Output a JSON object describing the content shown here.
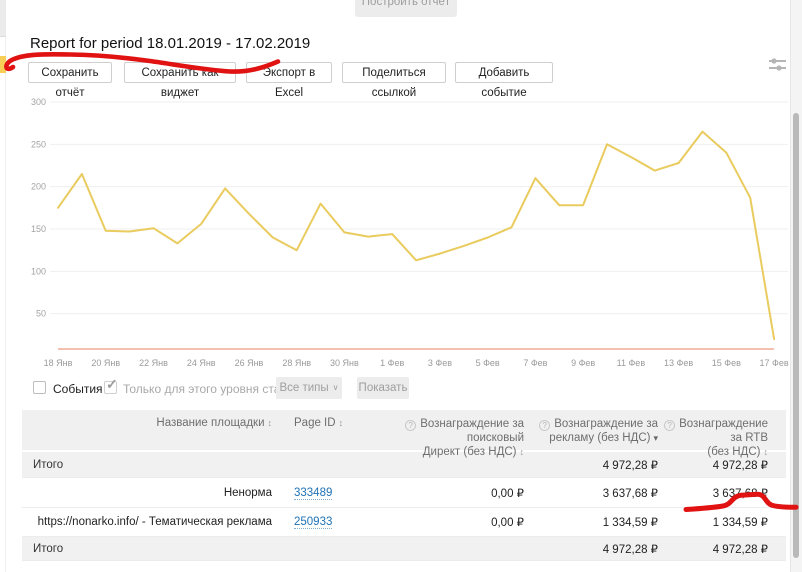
{
  "page": {
    "top_button": "Построить отчёт",
    "title": "Report for period 18.01.2019 - 17.02.2019"
  },
  "toolbar": {
    "buttons": [
      "Сохранить отчёт",
      "Сохранить как виджет",
      "Экспорт в Excel",
      "Поделиться ссылкой",
      "Добавить событие"
    ]
  },
  "chart_data": {
    "type": "line",
    "title": "",
    "x_labels": [
      "18 Янв",
      "20 Янв",
      "22 Янв",
      "24 Янв",
      "26 Янв",
      "28 Янв",
      "30 Янв",
      "1 Фев",
      "3 Фев",
      "5 Фев",
      "7 Фев",
      "9 Фев",
      "11 Фев",
      "13 Фев",
      "15 Фев",
      "17 Фев"
    ],
    "y_ticks": [
      50,
      100,
      150,
      200,
      250,
      300
    ],
    "ylim": [
      0,
      300
    ],
    "grid": true,
    "series": [
      {
        "name": "main",
        "color": "#e9cb5e",
        "values": [
          175,
          215,
          148,
          147,
          151,
          133,
          156,
          198,
          168,
          140,
          125,
          180,
          146,
          141,
          144,
          113,
          121,
          130,
          140,
          152,
          210,
          178,
          178,
          250,
          235,
          219,
          228,
          265,
          240,
          187,
          20
        ]
      },
      {
        "name": "secondary-flat",
        "color": "#f0ac95",
        "value": 0
      }
    ]
  },
  "filters": {
    "events_label": "События",
    "level_label": "Только для этого уровня статистики",
    "type_select": "Все типы",
    "show_button": "Показать"
  },
  "table": {
    "headers": {
      "platform": "Название площадки",
      "page_id": "Page ID",
      "direct_l1": "Вознаграждение за поисковый",
      "direct_l2": "Директ (без НДС)",
      "ads_l1": "Вознаграждение за",
      "ads_l2": "рекламу (без НДС)",
      "rtb_l1": "Вознаграждение за RTB",
      "rtb_l2": "(без НДС)"
    },
    "rows": [
      {
        "name": "Итого",
        "page_id": "",
        "direct": "",
        "ads": "4 972,28 ₽",
        "rtb": "4 972,28 ₽"
      },
      {
        "name": "Ненорма",
        "page_id": "333489",
        "direct": "0,00 ₽",
        "ads": "3 637,68 ₽",
        "rtb": "3 637,68 ₽"
      },
      {
        "name": "https://nonarko.info/ - Тематическая реклама",
        "page_id": "250933",
        "direct": "0,00 ₽",
        "ads": "1 334,59 ₽",
        "rtb": "1 334,59 ₽"
      },
      {
        "name": "Итого",
        "page_id": "",
        "direct": "",
        "ads": "4 972,28 ₽",
        "rtb": "4 972,28 ₽"
      }
    ]
  },
  "annotations": {
    "color": "#e01212"
  },
  "icons": {
    "sort": "↕",
    "sort_desc": "▾",
    "help": "?",
    "caret": "∨",
    "check": "✓"
  }
}
